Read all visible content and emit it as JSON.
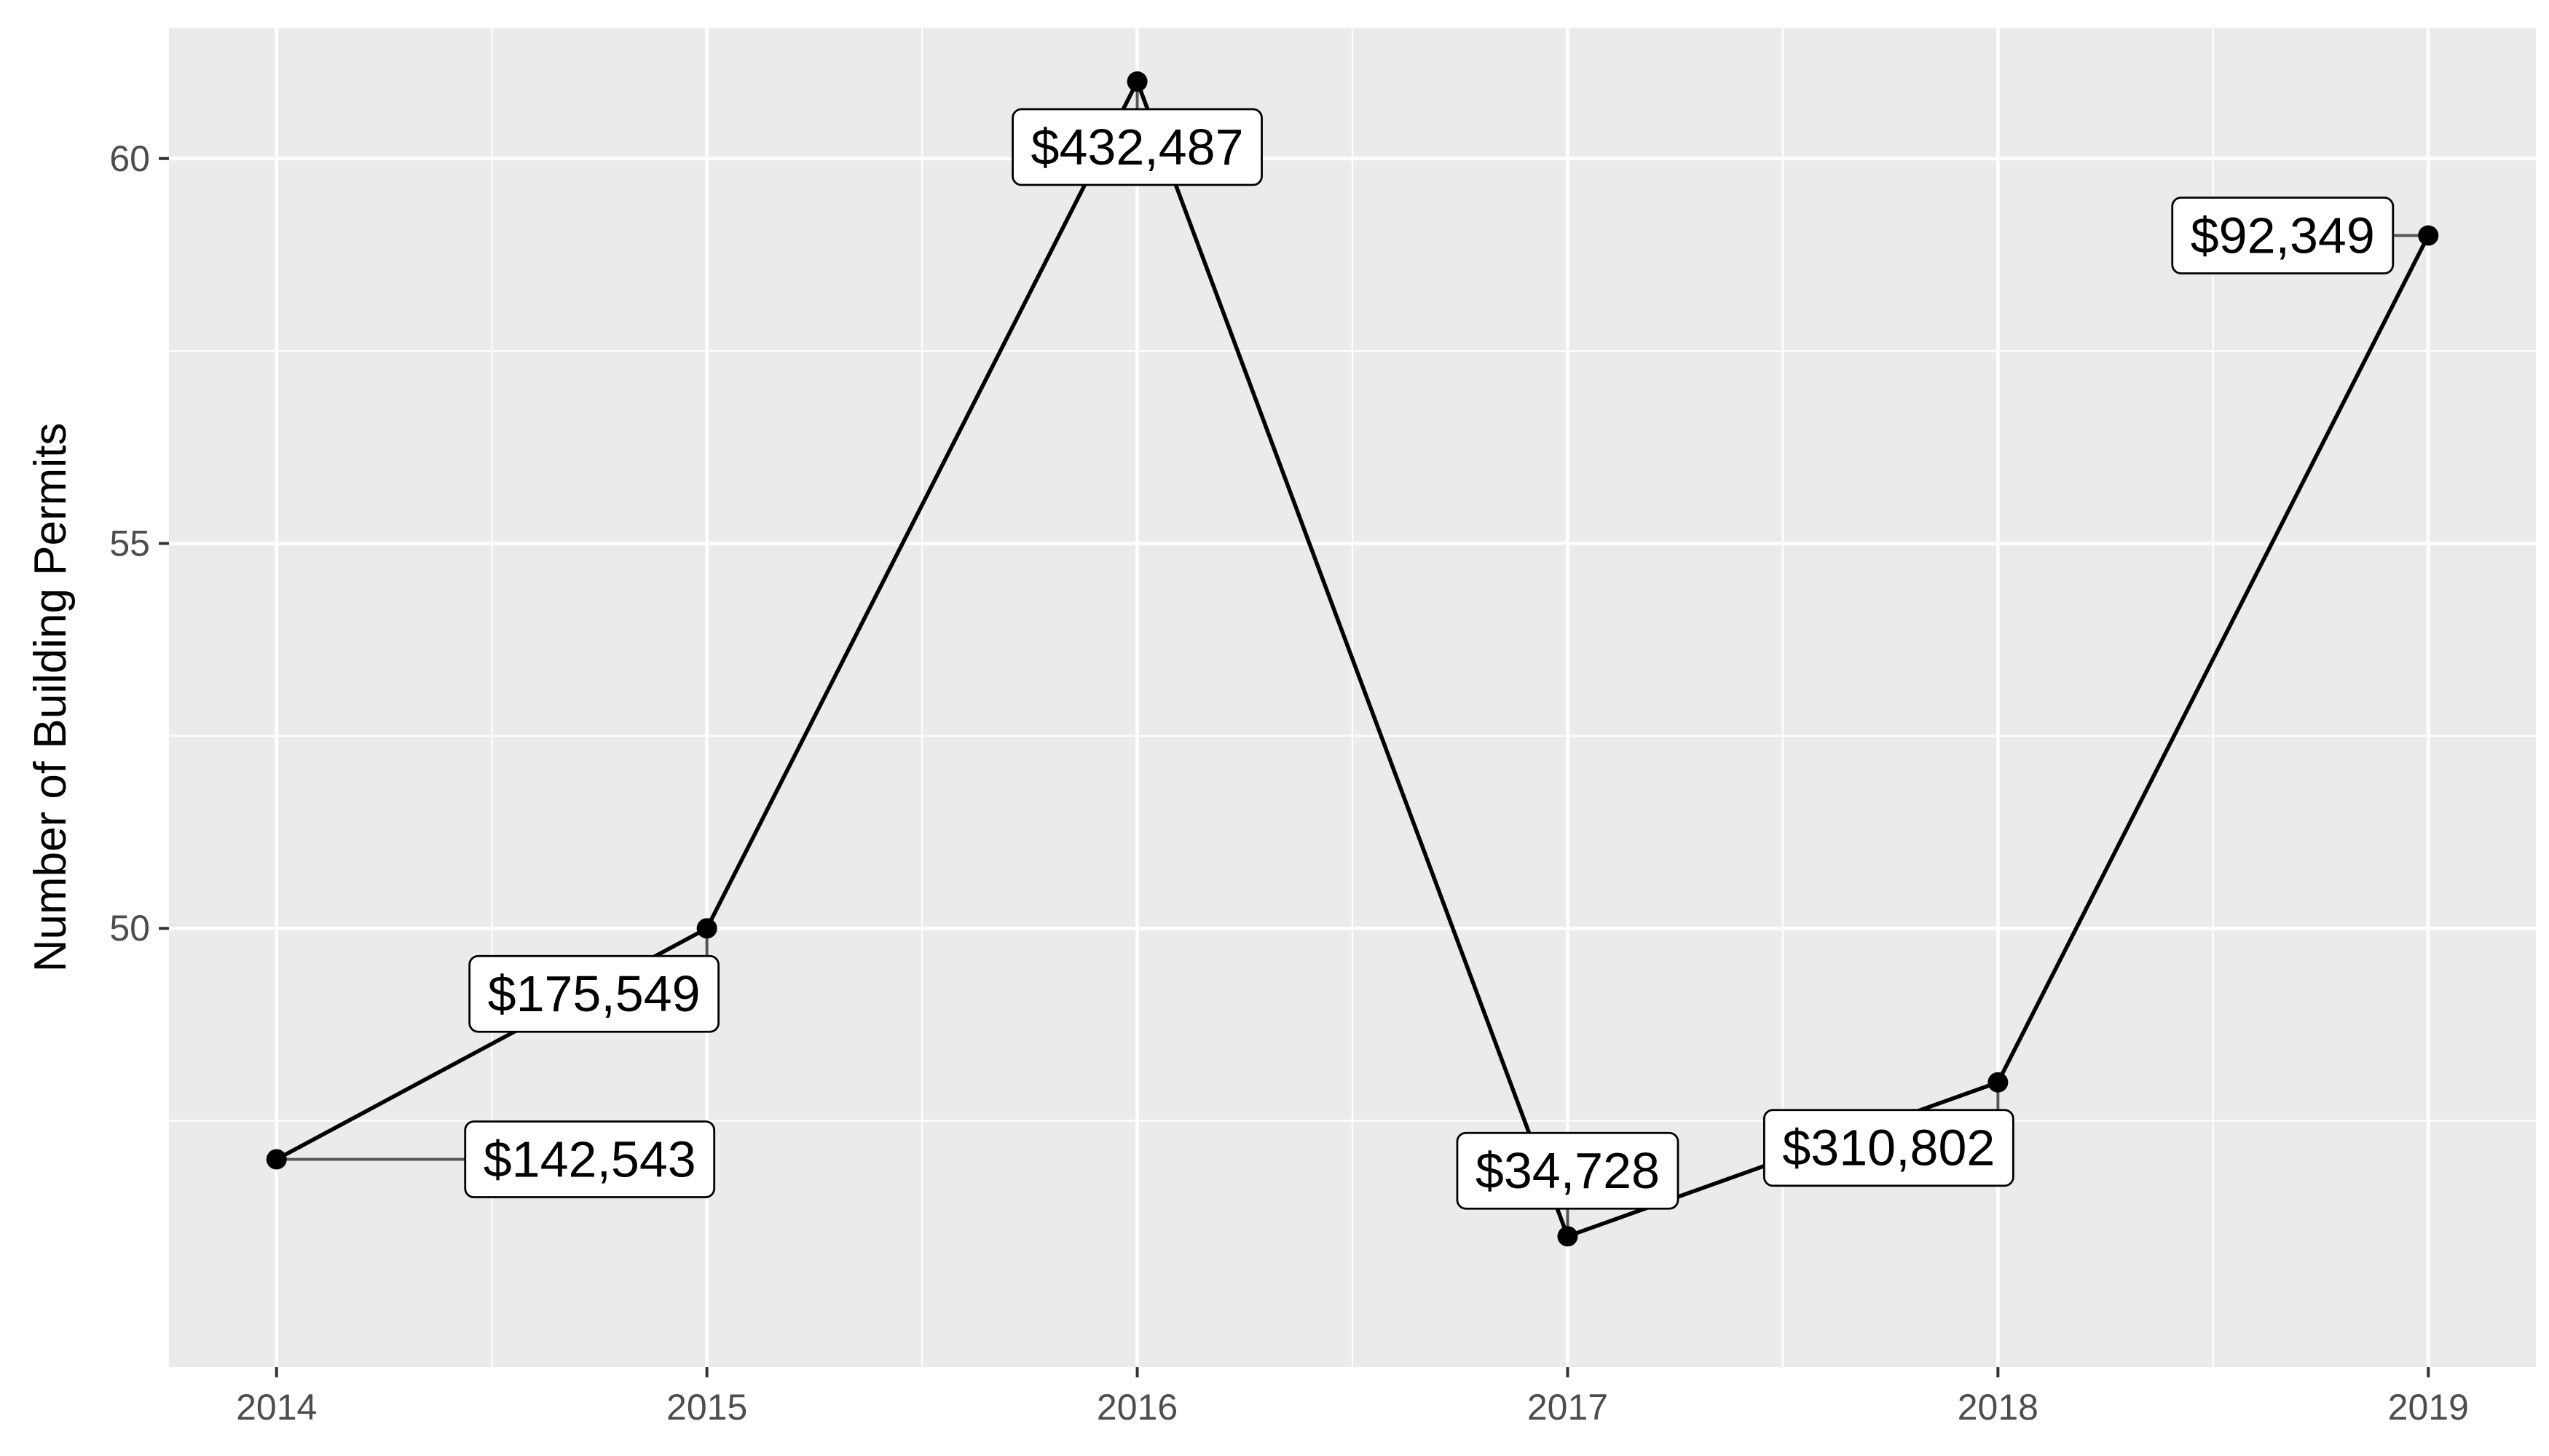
{
  "chart_data": {
    "type": "line",
    "title": "",
    "xlabel": "",
    "ylabel": "Number of Building Permits",
    "x": [
      2014,
      2015,
      2016,
      2017,
      2018,
      2019
    ],
    "x_tick_labels": [
      "2014",
      "2015",
      "2016",
      "2017",
      "2018",
      "2019"
    ],
    "y_ticks": [
      50,
      55,
      60
    ],
    "y_tick_labels": [
      "50",
      "55",
      "60"
    ],
    "xlim": [
      2013.75,
      2019.25
    ],
    "ylim": [
      44.3,
      61.7
    ],
    "grid": true,
    "legend": "none",
    "colors": {
      "panel": "#ebebeb",
      "grid": "#ffffff",
      "line": "#000000"
    },
    "series": [
      {
        "values": [
          47,
          50,
          61,
          46,
          48,
          59
        ],
        "labels": [
          "$142,543",
          "$175,549",
          "$432,487",
          "$34,728",
          "$310,802",
          "$92,349"
        ]
      }
    ]
  }
}
